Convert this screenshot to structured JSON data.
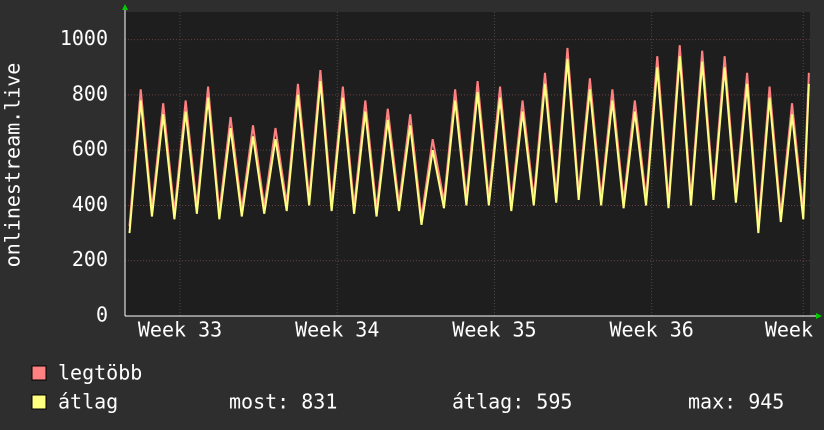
{
  "chart_data": {
    "type": "line",
    "ylabel": "onlinestream.live",
    "xlim": [
      0,
      30.5
    ],
    "ylim": [
      0,
      1100
    ],
    "yticks": [
      0,
      200,
      400,
      600,
      800,
      1000
    ],
    "xticks": [
      {
        "value": 2.45,
        "label": "Week 33"
      },
      {
        "value": 9.45,
        "label": "Week 34"
      },
      {
        "value": 16.45,
        "label": "Week 35"
      },
      {
        "value": 23.45,
        "label": "Week 36"
      },
      {
        "value": 30.2,
        "label": "Week"
      }
    ],
    "grid": true,
    "x": [
      0.2,
      0.7,
      1.2,
      1.7,
      2.2,
      2.7,
      3.2,
      3.7,
      4.2,
      4.7,
      5.2,
      5.7,
      6.2,
      6.7,
      7.2,
      7.7,
      8.2,
      8.7,
      9.2,
      9.7,
      10.2,
      10.7,
      11.2,
      11.7,
      12.2,
      12.7,
      13.2,
      13.7,
      14.2,
      14.7,
      15.2,
      15.7,
      16.2,
      16.7,
      17.2,
      17.7,
      18.2,
      18.7,
      19.2,
      19.7,
      20.2,
      20.7,
      21.2,
      21.7,
      22.2,
      22.7,
      23.2,
      23.7,
      24.2,
      24.7,
      25.2,
      25.7,
      26.2,
      26.7,
      27.2,
      27.7,
      28.2,
      28.7,
      29.2,
      29.7,
      30.2,
      30.45
    ],
    "series": [
      {
        "name": "legtöbb",
        "color": "#ff8080",
        "values": [
          325,
          820,
          385,
          770,
          375,
          780,
          395,
          830,
          375,
          720,
          385,
          690,
          395,
          680,
          405,
          840,
          425,
          890,
          405,
          830,
          395,
          780,
          385,
          750,
          405,
          730,
          355,
          640,
          415,
          820,
          425,
          850,
          425,
          830,
          405,
          780,
          425,
          880,
          435,
          970,
          445,
          860,
          425,
          820,
          415,
          780,
          425,
          940,
          415,
          980,
          425,
          960,
          445,
          940,
          435,
          880,
          325,
          830,
          365,
          770,
          375,
          880
        ]
      },
      {
        "name": "átlag",
        "color": "#ffff80",
        "values": [
          300,
          780,
          360,
          730,
          350,
          740,
          370,
          790,
          350,
          680,
          360,
          650,
          370,
          640,
          380,
          800,
          400,
          850,
          380,
          790,
          370,
          740,
          360,
          710,
          380,
          690,
          330,
          600,
          390,
          780,
          400,
          810,
          400,
          790,
          380,
          740,
          400,
          840,
          410,
          930,
          420,
          820,
          400,
          780,
          390,
          740,
          400,
          900,
          390,
          940,
          400,
          920,
          420,
          900,
          410,
          840,
          300,
          790,
          340,
          730,
          350,
          840
        ]
      }
    ],
    "stats": {
      "now": "most: 831",
      "avg": "átlag: 595",
      "max": "max: 945"
    }
  }
}
